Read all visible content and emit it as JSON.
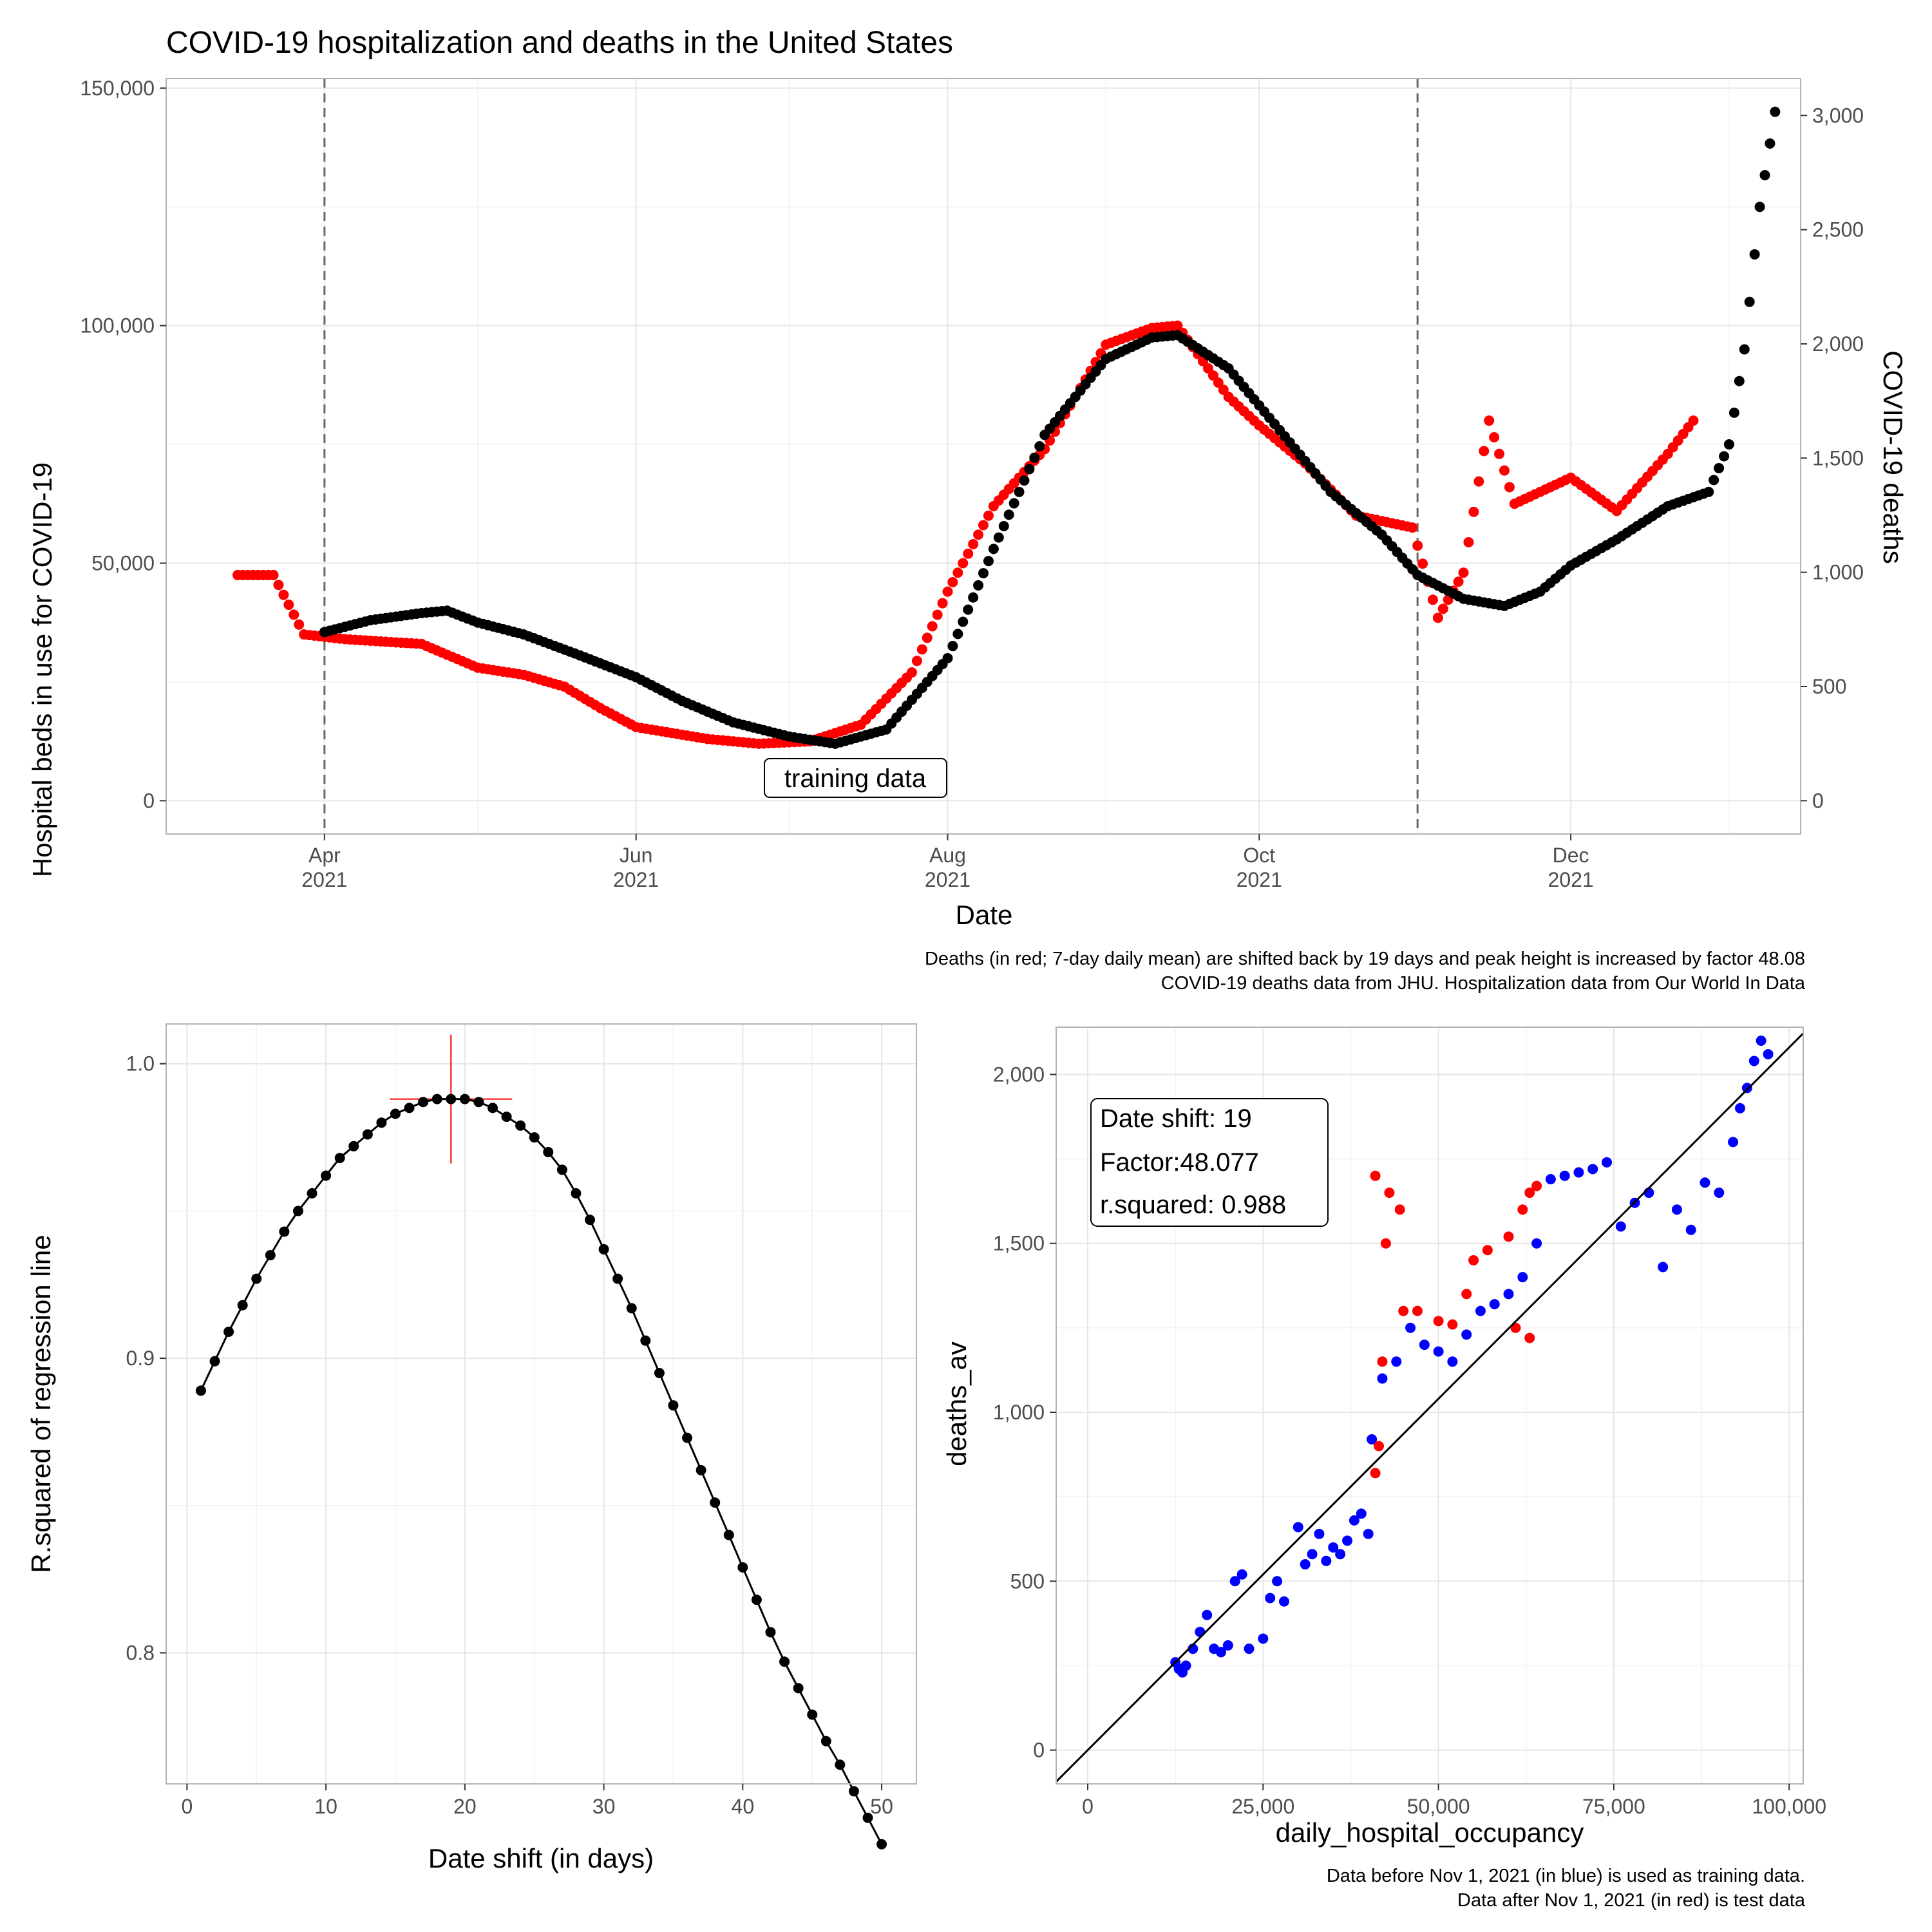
{
  "chart_data": [
    {
      "type": "scatter",
      "title": "COVID-19 hospitalization and deaths in the United States",
      "xlabel": "Date",
      "ylabel": "Hospital beds in use for COVID-19",
      "y2label": "COVID-19 deaths",
      "xlim": [
        "2021-03-01",
        "2022-01-15"
      ],
      "ylim": [
        -7000,
        152000
      ],
      "y2lim": [
        -145.6,
        3161.6
      ],
      "x_ticks": [
        {
          "date": "2021-04-01",
          "label": "Apr",
          "year": "2021"
        },
        {
          "date": "2021-06-01",
          "label": "Jun",
          "year": "2021"
        },
        {
          "date": "2021-08-01",
          "label": "Aug",
          "year": "2021"
        },
        {
          "date": "2021-10-01",
          "label": "Oct",
          "year": "2021"
        },
        {
          "date": "2021-12-01",
          "label": "Dec",
          "year": "2021"
        }
      ],
      "y_ticks": [
        "0",
        "50,000",
        "100,000",
        "150,000"
      ],
      "y_tick_values": [
        0,
        50000,
        100000,
        150000
      ],
      "y2_ticks": [
        "0",
        "500",
        "1,000",
        "1,500",
        "2,000",
        "2,500",
        "3,000"
      ],
      "y2_tick_values": [
        0,
        500,
        1000,
        1500,
        2000,
        2500,
        3000
      ],
      "vlines": [
        "2021-04-01",
        "2021-11-01"
      ],
      "annotation": {
        "text": "training data",
        "date": "2021-07-31",
        "value": 4000
      },
      "grid": true,
      "series": [
        {
          "name": "hospital beds",
          "color": "#000000",
          "points": [
            [
              "2021-04-01",
              35500
            ],
            [
              "2021-04-10",
              38000
            ],
            [
              "2021-04-20",
              39500
            ],
            [
              "2021-04-25",
              40000
            ],
            [
              "2021-05-01",
              37500
            ],
            [
              "2021-05-10",
              35000
            ],
            [
              "2021-05-20",
              31000
            ],
            [
              "2021-06-01",
              26000
            ],
            [
              "2021-06-10",
              21000
            ],
            [
              "2021-06-20",
              16500
            ],
            [
              "2021-07-01",
              13500
            ],
            [
              "2021-07-10",
              12000
            ],
            [
              "2021-07-20",
              15000
            ],
            [
              "2021-08-01",
              30000
            ],
            [
              "2021-08-10",
              53000
            ],
            [
              "2021-08-20",
              77000
            ],
            [
              "2021-09-01",
              93000
            ],
            [
              "2021-09-10",
              97500
            ],
            [
              "2021-09-15",
              98000
            ],
            [
              "2021-09-25",
              91000
            ],
            [
              "2021-10-05",
              78000
            ],
            [
              "2021-10-15",
              65000
            ],
            [
              "2021-10-25",
              56000
            ],
            [
              "2021-11-01",
              47500
            ],
            [
              "2021-11-10",
              42500
            ],
            [
              "2021-11-18",
              41000
            ],
            [
              "2021-11-25",
              44000
            ],
            [
              "2021-12-01",
              49500
            ],
            [
              "2021-12-10",
              55000
            ],
            [
              "2021-12-20",
              62000
            ],
            [
              "2021-12-28",
              65000
            ],
            [
              "2022-01-01",
              75000
            ],
            [
              "2022-01-04",
              95000
            ],
            [
              "2022-01-07",
              125000
            ],
            [
              "2022-01-10",
              145000
            ]
          ]
        },
        {
          "name": "deaths (shifted)",
          "color": "#ff0000",
          "points": [
            [
              "2021-03-15",
              47500
            ],
            [
              "2021-03-22",
              47500
            ],
            [
              "2021-03-28",
              35000
            ],
            [
              "2021-04-05",
              34000
            ],
            [
              "2021-04-20",
              33000
            ],
            [
              "2021-05-01",
              28000
            ],
            [
              "2021-05-10",
              26500
            ],
            [
              "2021-05-18",
              24000
            ],
            [
              "2021-05-25",
              19500
            ],
            [
              "2021-06-01",
              15500
            ],
            [
              "2021-06-15",
              13000
            ],
            [
              "2021-06-25",
              12000
            ],
            [
              "2021-07-05",
              12500
            ],
            [
              "2021-07-15",
              16000
            ],
            [
              "2021-07-25",
              27000
            ],
            [
              "2021-08-01",
              44000
            ],
            [
              "2021-08-10",
              62000
            ],
            [
              "2021-08-20",
              74000
            ],
            [
              "2021-09-01",
              96000
            ],
            [
              "2021-09-10",
              99500
            ],
            [
              "2021-09-15",
              100000
            ],
            [
              "2021-09-25",
              85000
            ],
            [
              "2021-10-01",
              79000
            ],
            [
              "2021-10-10",
              71000
            ],
            [
              "2021-10-20",
              60000
            ],
            [
              "2021-10-31",
              57500
            ],
            [
              "2021-11-05",
              38500
            ],
            [
              "2021-11-10",
              48000
            ],
            [
              "2021-11-15",
              80000
            ],
            [
              "2021-11-20",
              62500
            ],
            [
              "2021-12-01",
              68000
            ],
            [
              "2021-12-10",
              61000
            ],
            [
              "2021-12-20",
              73000
            ],
            [
              "2021-12-25",
              80000
            ]
          ]
        }
      ],
      "caption": [
        "Deaths (in red; 7-day daily mean) are shifted back by 19 days and peak height is increased by factor 48.08",
        "COVID-19 deaths data from JHU. Hospitalization data from Our World In Data"
      ]
    },
    {
      "type": "line",
      "xlabel": "Date shift (in days)",
      "ylabel": "R.squared of regression line",
      "xlim": [
        -1.5,
        52.5
      ],
      "ylim": [
        0.7555,
        1.0135
      ],
      "x_ticks": [
        "0",
        "10",
        "20",
        "30",
        "40",
        "50"
      ],
      "x_tick_values": [
        0,
        10,
        20,
        30,
        40,
        50
      ],
      "y_ticks": [
        "0.8",
        "0.9",
        "1.0"
      ],
      "y_tick_values": [
        0.8,
        0.9,
        1.0
      ],
      "grid": true,
      "x": [
        1,
        2,
        3,
        4,
        5,
        6,
        7,
        8,
        9,
        10,
        11,
        12,
        13,
        14,
        15,
        16,
        17,
        18,
        19,
        20,
        21,
        22,
        23,
        24,
        25,
        26,
        27,
        28,
        29,
        30,
        31,
        32,
        33,
        34,
        35,
        36,
        37,
        38,
        39,
        40,
        41,
        42,
        43,
        44,
        45,
        46,
        47,
        48,
        49,
        50
      ],
      "values": [
        0.889,
        0.899,
        0.909,
        0.918,
        0.927,
        0.935,
        0.943,
        0.95,
        0.956,
        0.962,
        0.968,
        0.972,
        0.976,
        0.98,
        0.983,
        0.985,
        0.987,
        0.988,
        0.988,
        0.988,
        0.987,
        0.985,
        0.982,
        0.979,
        0.975,
        0.97,
        0.964,
        0.956,
        0.947,
        0.937,
        0.927,
        0.917,
        0.906,
        0.895,
        0.884,
        0.873,
        0.862,
        0.851,
        0.84,
        0.829,
        0.818,
        0.807,
        0.797,
        0.788,
        0.779,
        0.77,
        0.762,
        0.753,
        0.744,
        0.735
      ],
      "optimum": {
        "x": 19,
        "value": 0.988
      }
    },
    {
      "type": "scatter",
      "xlabel": "daily_hospital_occupancy",
      "ylabel": "deaths_av",
      "xlim": [
        -4500,
        102000
      ],
      "ylim": [
        -100,
        2140
      ],
      "x_ticks": [
        "0",
        "25,000",
        "50,000",
        "75,000",
        "100,000"
      ],
      "x_tick_values": [
        0,
        25000,
        50000,
        75000,
        100000
      ],
      "y_ticks": [
        "0",
        "500",
        "1,000",
        "1,500",
        "2,000"
      ],
      "y_tick_values": [
        0,
        500,
        1000,
        1500,
        2000
      ],
      "grid": true,
      "regression": {
        "slope": 0.0208,
        "intercept": 0
      },
      "annotation_lines": [
        "Date shift: 19",
        "Factor:48.077",
        "r.squared: 0.988"
      ],
      "series": [
        {
          "name": "Data before Nov 1, 2021",
          "color": "#0000ff",
          "points": [
            [
              12500,
              260
            ],
            [
              13000,
              240
            ],
            [
              13500,
              230
            ],
            [
              14000,
              250
            ],
            [
              15000,
              300
            ],
            [
              16000,
              350
            ],
            [
              17000,
              400
            ],
            [
              18000,
              300
            ],
            [
              19000,
              290
            ],
            [
              20000,
              310
            ],
            [
              21000,
              500
            ],
            [
              22000,
              520
            ],
            [
              23000,
              300
            ],
            [
              25000,
              330
            ],
            [
              26000,
              450
            ],
            [
              27000,
              500
            ],
            [
              28000,
              440
            ],
            [
              30000,
              660
            ],
            [
              31000,
              550
            ],
            [
              32000,
              580
            ],
            [
              33000,
              640
            ],
            [
              34000,
              560
            ],
            [
              35000,
              600
            ],
            [
              36000,
              580
            ],
            [
              37000,
              620
            ],
            [
              38000,
              680
            ],
            [
              39000,
              700
            ],
            [
              40000,
              640
            ],
            [
              40500,
              920
            ],
            [
              42000,
              1100
            ],
            [
              44000,
              1150
            ],
            [
              46000,
              1250
            ],
            [
              48000,
              1200
            ],
            [
              50000,
              1180
            ],
            [
              52000,
              1150
            ],
            [
              54000,
              1230
            ],
            [
              56000,
              1300
            ],
            [
              58000,
              1320
            ],
            [
              60000,
              1350
            ],
            [
              62000,
              1400
            ],
            [
              64000,
              1500
            ],
            [
              66000,
              1690
            ],
            [
              68000,
              1700
            ],
            [
              70000,
              1710
            ],
            [
              72000,
              1720
            ],
            [
              74000,
              1740
            ],
            [
              76000,
              1550
            ],
            [
              78000,
              1620
            ],
            [
              80000,
              1650
            ],
            [
              82000,
              1430
            ],
            [
              84000,
              1600
            ],
            [
              86000,
              1540
            ],
            [
              88000,
              1680
            ],
            [
              90000,
              1650
            ],
            [
              92000,
              1800
            ],
            [
              93000,
              1900
            ],
            [
              94000,
              1960
            ],
            [
              95000,
              2040
            ],
            [
              96000,
              2100
            ],
            [
              97000,
              2060
            ]
          ]
        },
        {
          "name": "Data after Nov 1, 2021",
          "color": "#ff0000",
          "points": [
            [
              41000,
              820
            ],
            [
              41500,
              900
            ],
            [
              42000,
              1150
            ],
            [
              42500,
              1500
            ],
            [
              41000,
              1700
            ],
            [
              43000,
              1650
            ],
            [
              44500,
              1600
            ],
            [
              45000,
              1300
            ],
            [
              47000,
              1300
            ],
            [
              50000,
              1270
            ],
            [
              52000,
              1260
            ],
            [
              54000,
              1350
            ],
            [
              55000,
              1450
            ],
            [
              57000,
              1480
            ],
            [
              60000,
              1520
            ],
            [
              62000,
              1600
            ],
            [
              63000,
              1650
            ],
            [
              64000,
              1670
            ],
            [
              61000,
              1250
            ],
            [
              63000,
              1220
            ]
          ]
        }
      ],
      "caption": [
        "Data before Nov 1, 2021 (in blue) is used as training data.",
        "Data after Nov 1, 2021 (in red) is test data"
      ]
    }
  ]
}
